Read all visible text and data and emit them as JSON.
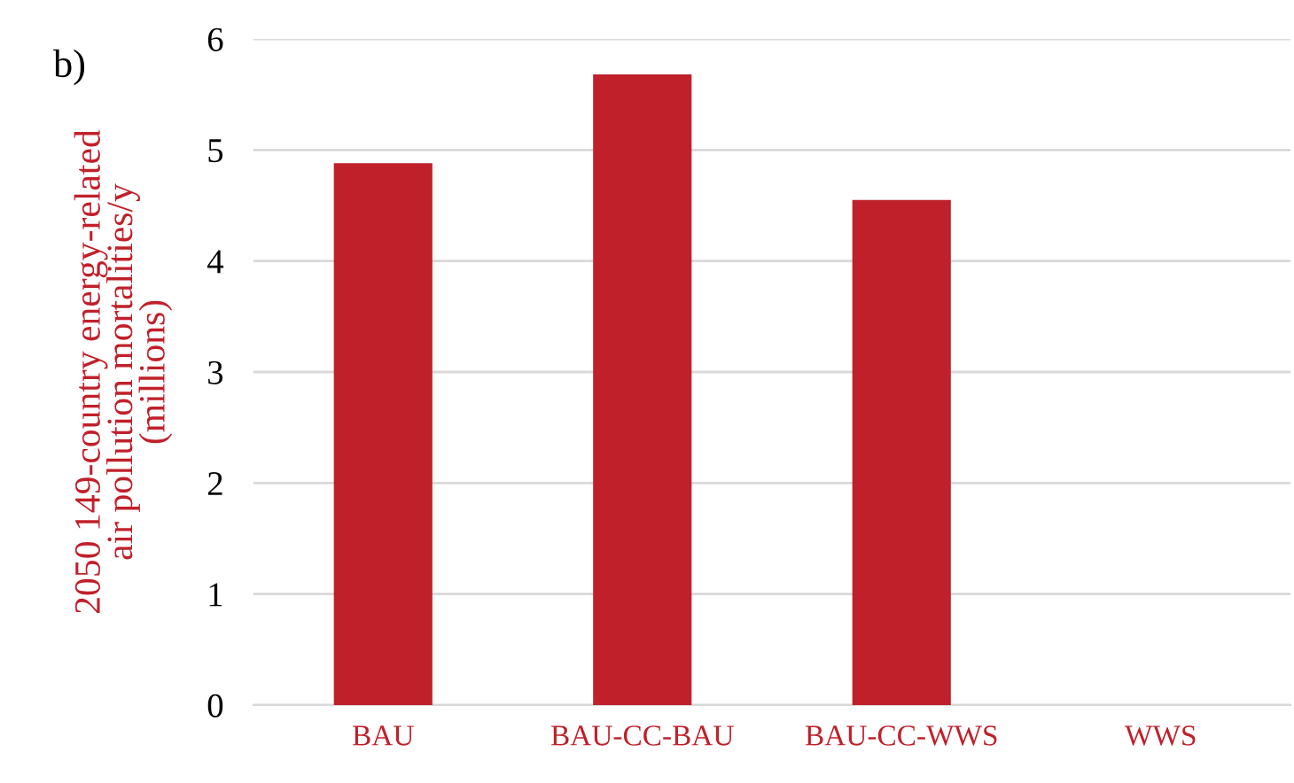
{
  "chart_data": {
    "type": "bar",
    "title": "b)",
    "ylabel": "2050 149-country energy-related\nair pollution mortalities/y\n(millions)",
    "categories": [
      "BAU",
      "BAU-CC-BAU",
      "BAU-CC-WWS",
      "WWS"
    ],
    "values": [
      4.88,
      5.68,
      4.55,
      0
    ],
    "color": "#c0202a",
    "ylim": [
      0,
      6
    ],
    "yticks": [
      0,
      1,
      2,
      3,
      4,
      5,
      6
    ],
    "grid": "y"
  }
}
